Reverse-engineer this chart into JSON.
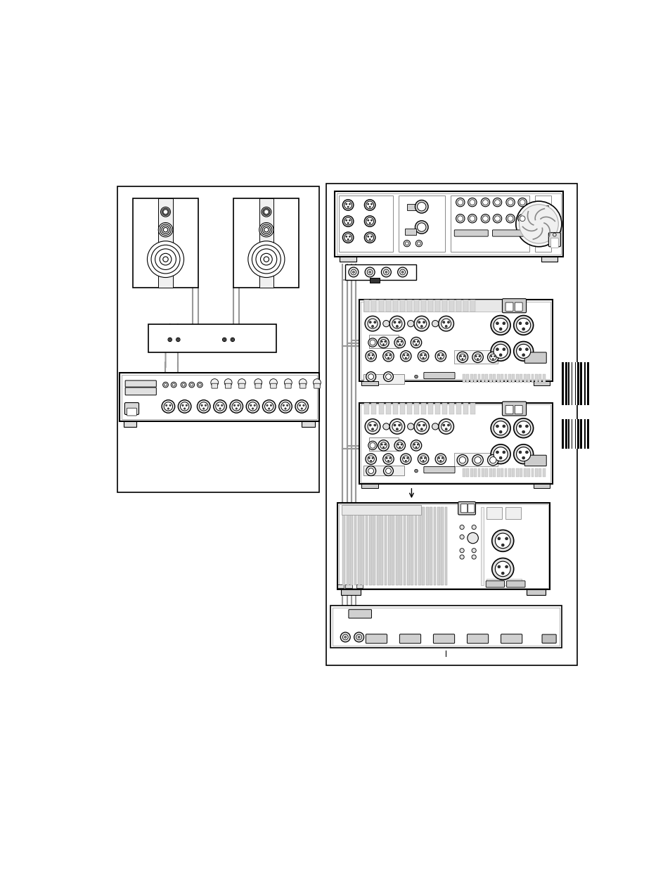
{
  "bg_color": "#ffffff",
  "lc": "#999999",
  "bc": "#000000",
  "fig_w": 9.54,
  "fig_h": 12.74,
  "page_bg": "#ffffff"
}
